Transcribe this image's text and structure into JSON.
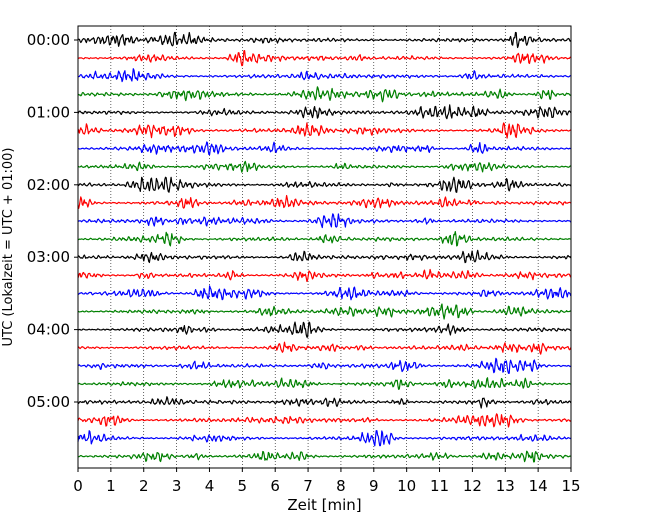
{
  "chart_data": {
    "type": "line",
    "title": "",
    "xlabel": "Zeit  [min]",
    "ylabel": "UTC (Lokalzeit = UTC + 01:00)",
    "xlim": [
      0,
      15
    ],
    "x_ticks": [
      "0",
      "1",
      "2",
      "3",
      "4",
      "5",
      "6",
      "7",
      "8",
      "9",
      "10",
      "11",
      "12",
      "13",
      "14",
      "15"
    ],
    "y_tick_labels": [
      "00:00",
      "01:00",
      "02:00",
      "03:00",
      "04:00",
      "05:00"
    ],
    "traces_per_hour": 4,
    "trace_count": 24,
    "trace_colors": [
      "#000000",
      "#ff0000",
      "#0000ff",
      "#008000"
    ],
    "grid": "vertical dotted",
    "legend": "none"
  }
}
